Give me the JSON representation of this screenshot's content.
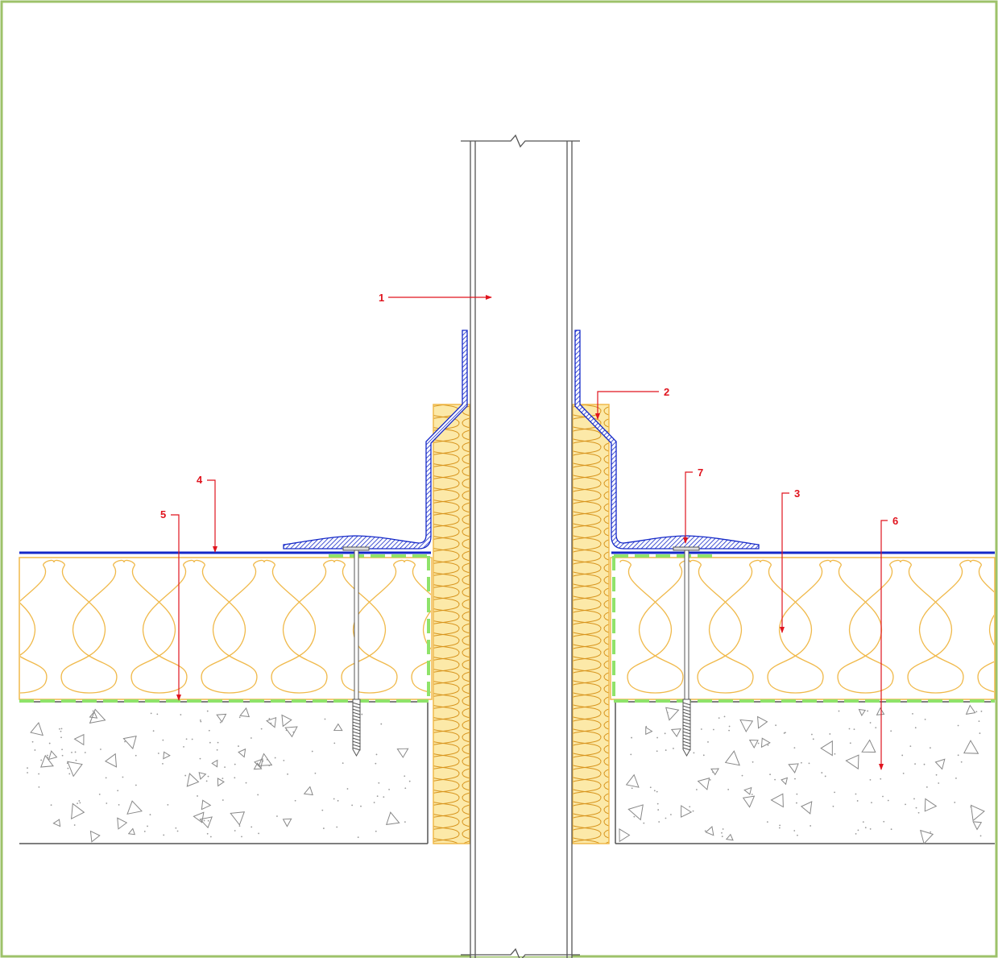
{
  "colors": {
    "border": "#9dc26a",
    "membrane": "#1428c8",
    "insulation": "#f0b94a",
    "insulation_fill": "#fff7d6",
    "board_fill": "#fce9a8",
    "separator": "#8fe36a",
    "callout": "#e0141e",
    "line": "#555555",
    "concrete_mark": "#888888"
  },
  "callouts": [
    {
      "id": "callout-1",
      "label": "1"
    },
    {
      "id": "callout-2",
      "label": "2"
    },
    {
      "id": "callout-3",
      "label": "3"
    },
    {
      "id": "callout-4",
      "label": "4"
    },
    {
      "id": "callout-5",
      "label": "5"
    },
    {
      "id": "callout-6",
      "label": "6"
    },
    {
      "id": "callout-7",
      "label": "7"
    }
  ]
}
